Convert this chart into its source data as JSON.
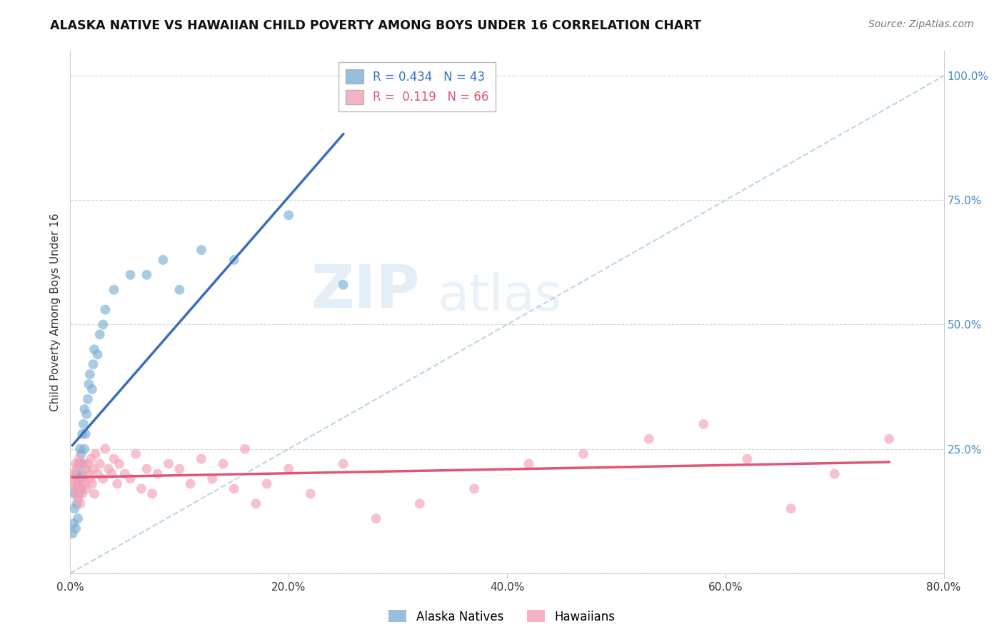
{
  "title": "ALASKA NATIVE VS HAWAIIAN CHILD POVERTY AMONG BOYS UNDER 16 CORRELATION CHART",
  "source": "Source: ZipAtlas.com",
  "ylabel": "Child Poverty Among Boys Under 16",
  "xlim": [
    0.0,
    0.8
  ],
  "ylim": [
    -0.02,
    1.05
  ],
  "plot_ylim": [
    0.0,
    1.05
  ],
  "alaska_R": 0.434,
  "alaska_N": 43,
  "hawaiian_R": 0.119,
  "hawaiian_N": 66,
  "alaska_color": "#7BAFD4",
  "hawaiian_color": "#F4A0B5",
  "alaska_line_color": "#3B6DBF",
  "hawaiian_line_color": "#E05575",
  "dashed_line_color": "#AACCDD",
  "legend_label_alaska": "Alaska Natives",
  "legend_label_hawaiian": "Hawaiians",
  "background_color": "#FFFFFF",
  "grid_color": "#CCCCCC",
  "watermark_zip": "ZIP",
  "watermark_atlas": "atlas",
  "right_axis_color": "#4488CC",
  "alaska_x": [
    0.002,
    0.003,
    0.004,
    0.004,
    0.005,
    0.005,
    0.006,
    0.006,
    0.007,
    0.007,
    0.008,
    0.008,
    0.009,
    0.009,
    0.01,
    0.01,
    0.011,
    0.011,
    0.012,
    0.012,
    0.013,
    0.013,
    0.014,
    0.015,
    0.016,
    0.017,
    0.018,
    0.02,
    0.021,
    0.022,
    0.025,
    0.027,
    0.03,
    0.032,
    0.04,
    0.055,
    0.07,
    0.085,
    0.1,
    0.12,
    0.15,
    0.2,
    0.25
  ],
  "alaska_y": [
    0.08,
    0.1,
    0.13,
    0.16,
    0.09,
    0.17,
    0.14,
    0.2,
    0.11,
    0.18,
    0.16,
    0.22,
    0.19,
    0.25,
    0.17,
    0.24,
    0.2,
    0.28,
    0.22,
    0.3,
    0.25,
    0.33,
    0.28,
    0.32,
    0.35,
    0.38,
    0.4,
    0.37,
    0.42,
    0.45,
    0.44,
    0.48,
    0.5,
    0.53,
    0.57,
    0.6,
    0.6,
    0.63,
    0.57,
    0.65,
    0.63,
    0.72,
    0.58
  ],
  "hawaiian_x": [
    0.002,
    0.003,
    0.004,
    0.005,
    0.005,
    0.006,
    0.006,
    0.007,
    0.008,
    0.008,
    0.009,
    0.01,
    0.01,
    0.011,
    0.012,
    0.013,
    0.014,
    0.015,
    0.016,
    0.017,
    0.018,
    0.019,
    0.02,
    0.021,
    0.022,
    0.023,
    0.025,
    0.027,
    0.03,
    0.032,
    0.035,
    0.038,
    0.04,
    0.043,
    0.045,
    0.05,
    0.055,
    0.06,
    0.065,
    0.07,
    0.075,
    0.08,
    0.09,
    0.1,
    0.11,
    0.12,
    0.13,
    0.14,
    0.15,
    0.16,
    0.17,
    0.18,
    0.2,
    0.22,
    0.25,
    0.28,
    0.32,
    0.37,
    0.42,
    0.47,
    0.53,
    0.58,
    0.62,
    0.66,
    0.7,
    0.75
  ],
  "hawaiian_y": [
    0.2,
    0.19,
    0.18,
    0.17,
    0.22,
    0.16,
    0.21,
    0.15,
    0.18,
    0.23,
    0.14,
    0.17,
    0.22,
    0.16,
    0.19,
    0.18,
    0.21,
    0.17,
    0.22,
    0.2,
    0.19,
    0.23,
    0.18,
    0.21,
    0.16,
    0.24,
    0.2,
    0.22,
    0.19,
    0.25,
    0.21,
    0.2,
    0.23,
    0.18,
    0.22,
    0.2,
    0.19,
    0.24,
    0.17,
    0.21,
    0.16,
    0.2,
    0.22,
    0.21,
    0.18,
    0.23,
    0.19,
    0.22,
    0.17,
    0.25,
    0.14,
    0.18,
    0.21,
    0.16,
    0.22,
    0.11,
    0.14,
    0.17,
    0.22,
    0.24,
    0.27,
    0.3,
    0.23,
    0.13,
    0.2,
    0.27
  ],
  "xtick_vals": [
    0.0,
    0.2,
    0.4,
    0.6,
    0.8
  ],
  "xtick_labels": [
    "0.0%",
    "20.0%",
    "40.0%",
    "60.0%",
    "80.0%"
  ],
  "ytick_vals": [
    0.0,
    0.25,
    0.5,
    0.75,
    1.0
  ],
  "right_ytick_vals": [
    0.25,
    0.5,
    0.75,
    1.0
  ],
  "right_ytick_labels": [
    "25.0%",
    "50.0%",
    "75.0%",
    "100.0%"
  ]
}
